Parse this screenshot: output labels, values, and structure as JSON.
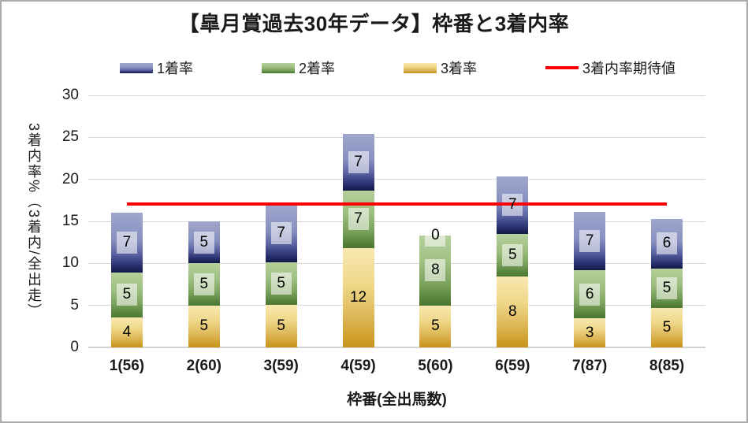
{
  "title": "【皐月賞過去30年データ】枠番と3着内率",
  "legend": [
    {
      "key": "rank1",
      "label": "1着率",
      "type": "box",
      "color": "#6a74ad"
    },
    {
      "key": "rank2",
      "label": "2着率",
      "type": "box",
      "color": "#6f9a4f"
    },
    {
      "key": "rank3",
      "label": "3着率",
      "type": "box",
      "color": "#d9b04a"
    },
    {
      "key": "expected",
      "label": "3着内率期待値",
      "type": "line",
      "color": "#fb0000"
    }
  ],
  "chart_data": {
    "type": "bar",
    "stacked": true,
    "title": "【皐月賞過去30年データ】枠番と3着内率",
    "xlabel": "枠番(全出馬数)",
    "ylabel": "3着内率%（3着内/全出走）",
    "ylim": [
      0,
      30
    ],
    "yticks": [
      0,
      5,
      10,
      15,
      20,
      25,
      30
    ],
    "grid": true,
    "legend_position": "top",
    "categories": [
      "1(56)",
      "2(60)",
      "3(59)",
      "4(59)",
      "5(60)",
      "6(59)",
      "7(87)",
      "8(85)"
    ],
    "series": [
      {
        "key": "rank3",
        "name": "3着率",
        "color_top": "#f8e8b0",
        "color_bottom": "#c89318",
        "values": [
          3.57,
          5.0,
          5.08,
          11.86,
          5.0,
          8.47,
          3.45,
          4.71
        ],
        "labels": [
          "4",
          "5",
          "5",
          "12",
          "5",
          "8",
          "3",
          "5"
        ]
      },
      {
        "key": "rank2",
        "name": "2着率",
        "color_top": "#b5d09c",
        "color_bottom": "#4a7531",
        "values": [
          5.36,
          5.0,
          5.08,
          6.78,
          8.33,
          5.08,
          5.75,
          4.71
        ],
        "labels": [
          "5",
          "5",
          "5",
          "7",
          "8",
          "5",
          "6",
          "5"
        ]
      },
      {
        "key": "rank1",
        "name": "1着率",
        "color_top": "#9fa7ce",
        "color_bottom": "#121947",
        "values": [
          7.14,
          5.0,
          6.78,
          6.78,
          0.0,
          6.78,
          6.9,
          5.88
        ],
        "labels": [
          "7",
          "5",
          "7",
          "7",
          "0",
          "7",
          "7",
          "6"
        ]
      }
    ],
    "expected_line": {
      "name": "3着内率期待値",
      "value": 17.1,
      "color": "#fb0000",
      "spans": "first-to-last-category-center"
    }
  },
  "y_axis": {
    "title": "3着内率%（3着内/全出走）",
    "tick_labels": [
      "30",
      "25",
      "20",
      "15",
      "10",
      "5",
      "0"
    ]
  },
  "x_axis": {
    "title": "枠番(全出馬数)",
    "tick_labels": [
      "1(56)",
      "2(60)",
      "3(59)",
      "4(59)",
      "5(60)",
      "6(59)",
      "7(87)",
      "8(85)"
    ]
  }
}
